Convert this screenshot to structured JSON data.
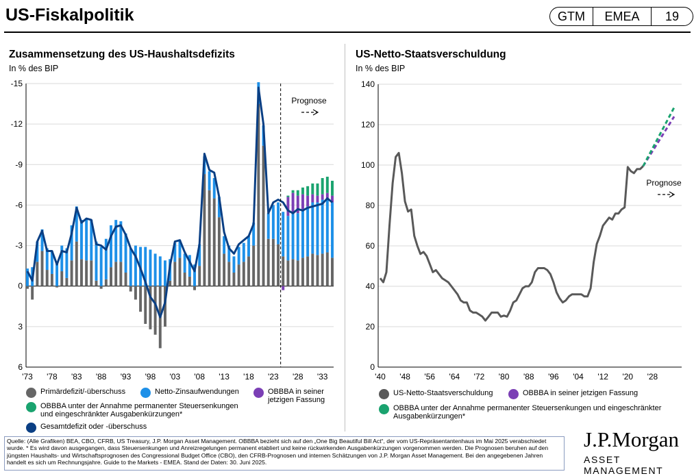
{
  "header": {
    "title": "US-Fiskalpolitik",
    "badge": [
      "GTM",
      "EMEA",
      "19"
    ]
  },
  "colors": {
    "primary": "#666666",
    "interest": "#1e90e8",
    "obbba": "#7b3fb5",
    "obbba_perm": "#1aa36f",
    "total": "#0a3f84",
    "debt": "#595959"
  },
  "chart_data": [
    {
      "type": "bar",
      "title": "Zusammensetzung des US-Haushaltsdefizits",
      "subtitle": "In % des BIP",
      "yticks": [
        "-15",
        "-12",
        "-9",
        "-6",
        "-3",
        "0",
        "3",
        "6"
      ],
      "ylim": [
        -15,
        6
      ],
      "xticks": [
        "'73",
        "'78",
        "'83",
        "'88",
        "'93",
        "'98",
        "'03",
        "'08",
        "'13",
        "'18",
        "'23",
        "'28",
        "'33"
      ],
      "years": [
        1973,
        1974,
        1975,
        1976,
        1977,
        1978,
        1979,
        1980,
        1981,
        1982,
        1983,
        1984,
        1985,
        1986,
        1987,
        1988,
        1989,
        1990,
        1991,
        1992,
        1993,
        1994,
        1995,
        1996,
        1997,
        1998,
        1999,
        2000,
        2001,
        2002,
        2003,
        2004,
        2005,
        2006,
        2007,
        2008,
        2009,
        2010,
        2011,
        2012,
        2013,
        2014,
        2015,
        2016,
        2017,
        2018,
        2019,
        2020,
        2021,
        2022,
        2023,
        2024,
        2025,
        2026,
        2027,
        2028,
        2029,
        2030,
        2031,
        2032,
        2033,
        2034,
        2035
      ],
      "series": [
        {
          "name": "Primärdefizit/-überschuss",
          "values": [
            0.2,
            1,
            -1.8,
            -2.6,
            -1.2,
            -0.9,
            0.1,
            -1.1,
            -0.6,
            -1.9,
            -3.3,
            -2,
            -1.9,
            -1.9,
            -0.4,
            0.2,
            -0.5,
            -1.4,
            -1.8,
            -1.8,
            -1,
            0.4,
            1,
            1.9,
            2.8,
            3.2,
            3.6,
            4.6,
            3,
            -0.4,
            -1.8,
            -2.1,
            -1,
            -0.7,
            0.3,
            -1.5,
            -8.3,
            -7.1,
            -6.5,
            -5.1,
            -2.4,
            -1.8,
            -1,
            -1.6,
            -1.8,
            -2.2,
            -3,
            -13.5,
            -10.4,
            -3.5,
            -3.5,
            -3.1,
            -2.2,
            -1.9,
            -2.0,
            -1.9,
            -2.1,
            -2.2,
            -2.4,
            -2.3,
            -2.4,
            -2.5,
            -2.1
          ]
        },
        {
          "name": "Netto-Zinsaufwendungen",
          "values": [
            1.3,
            1.4,
            1.5,
            1.6,
            1.6,
            1.7,
            1.7,
            1.9,
            2.2,
            2.6,
            2.6,
            2.9,
            3.1,
            3.0,
            2.9,
            2.9,
            3.0,
            3.1,
            3.1,
            3.0,
            2.9,
            2.8,
            3.0,
            2.9,
            2.9,
            2.7,
            2.4,
            2.2,
            1.9,
            1.6,
            1.4,
            1.3,
            1.4,
            1.6,
            1.6,
            1.6,
            1.3,
            1.4,
            1.5,
            1.5,
            1.3,
            1.2,
            1.2,
            1.3,
            1.4,
            1.5,
            1.7,
            1.6,
            1.5,
            1.9,
            2.5,
            3.1,
            3.3,
            3.3,
            3.4,
            3.5,
            3.6,
            3.7,
            3.8,
            3.9,
            4.0,
            4.0,
            4.1
          ]
        },
        {
          "name": "OBBBA in seiner jetzigen Fassung",
          "values": [
            0,
            0,
            0,
            0,
            0,
            0,
            0,
            0,
            0,
            0,
            0,
            0,
            0,
            0,
            0,
            0,
            0,
            0,
            0,
            0,
            0,
            0,
            0,
            0,
            0,
            0,
            0,
            0,
            0,
            0,
            0,
            0,
            0,
            0,
            0,
            0,
            0,
            0,
            0,
            0,
            0,
            0,
            0,
            0,
            0,
            0,
            0,
            0,
            0,
            0,
            0,
            0,
            -0.3,
            1.4,
            1.5,
            1.3,
            1.1,
            0.8,
            0.6,
            0.5,
            0.4,
            0.4,
            0.5
          ]
        },
        {
          "name": "OBBBA unter der Annahme permanenter Steuersenkungen und eingeschränkter Ausgabenkürzungen*",
          "values": [
            0,
            0,
            0,
            0,
            0,
            0,
            0,
            0,
            0,
            0,
            0,
            0,
            0,
            0,
            0,
            0,
            0,
            0,
            0,
            0,
            0,
            0,
            0,
            0,
            0,
            0,
            0,
            0,
            0,
            0,
            0,
            0,
            0,
            0,
            0,
            0,
            0,
            0,
            0,
            0,
            0,
            0,
            0,
            0,
            0,
            0,
            0,
            0,
            0,
            0,
            0,
            0,
            0,
            0.1,
            0.2,
            0.4,
            0.5,
            0.7,
            0.8,
            0.9,
            1.2,
            1.2,
            1.1
          ]
        },
        {
          "name": "Gesamtdefizit oder -überschuss",
          "values": [
            -1.1,
            -0.4,
            -3.3,
            -4.1,
            -2.6,
            -2.6,
            -1.6,
            -2.6,
            -2.5,
            -3.9,
            -5.8,
            -4.7,
            -5,
            -4.9,
            -3.1,
            -3,
            -2.7,
            -3.7,
            -4.4,
            -4.5,
            -3.8,
            -2.8,
            -2.2,
            -1.3,
            -0.3,
            0.8,
            1.3,
            2.3,
            1.2,
            -1.5,
            -3.3,
            -3.4,
            -2.5,
            -1.8,
            -1.1,
            -3.1,
            -9.8,
            -8.6,
            -8.4,
            -6.6,
            -4,
            -2.8,
            -2.4,
            -3.1,
            -3.4,
            -3.7,
            -4.6,
            -14.7,
            -12,
            -5.4,
            -6.2,
            -6.4,
            -6.2,
            -5.6,
            -5.4,
            -5.7,
            -5.6,
            -5.8,
            -5.9,
            -6.0,
            -6.1,
            -6.5,
            -6.2
          ]
        }
      ],
      "forecast_start_year": 2025,
      "annotation": "Prognose"
    },
    {
      "type": "line",
      "title": "US-Netto-Staatsverschuldung",
      "subtitle": "In % des BIP",
      "yticks": [
        "140",
        "120",
        "100",
        "80",
        "60",
        "40",
        "20",
        "0"
      ],
      "ylim": [
        0,
        140
      ],
      "xticks": [
        "'40",
        "'48",
        "'56",
        "'64",
        "'72",
        "'80",
        "'88",
        "'96",
        "'04",
        "'12",
        "'20",
        "'28"
      ],
      "series": [
        {
          "name": "US-Netto-Staatsverschuldung",
          "x": [
            1940,
            1941,
            1942,
            1943,
            1944,
            1945,
            1946,
            1947,
            1948,
            1949,
            1950,
            1951,
            1952,
            1953,
            1954,
            1955,
            1956,
            1957,
            1958,
            1959,
            1960,
            1961,
            1962,
            1963,
            1964,
            1965,
            1966,
            1967,
            1968,
            1969,
            1970,
            1971,
            1972,
            1973,
            1974,
            1975,
            1976,
            1977,
            1978,
            1979,
            1980,
            1981,
            1982,
            1983,
            1984,
            1985,
            1986,
            1987,
            1988,
            1989,
            1990,
            1991,
            1992,
            1993,
            1994,
            1995,
            1996,
            1997,
            1998,
            1999,
            2000,
            2001,
            2002,
            2003,
            2004,
            2005,
            2006,
            2007,
            2008,
            2009,
            2010,
            2011,
            2012,
            2013,
            2014,
            2015,
            2016,
            2017,
            2018,
            2019,
            2020,
            2021,
            2022,
            2023,
            2024,
            2025
          ],
          "values": [
            44,
            42,
            47,
            70,
            91,
            104,
            106,
            96,
            82,
            77,
            78,
            65,
            60,
            56,
            57,
            55,
            51,
            47,
            48,
            46,
            44,
            43,
            42,
            40,
            38,
            36,
            33,
            32,
            32,
            28,
            27,
            27,
            26,
            25,
            23,
            25,
            27,
            27,
            27,
            25,
            25.5,
            25,
            28,
            32,
            33,
            36,
            39,
            40,
            40,
            42,
            47,
            49,
            49,
            49,
            48,
            46,
            42,
            37,
            34,
            32,
            33,
            35,
            36,
            36,
            36,
            36,
            35,
            35,
            39,
            52,
            61,
            65,
            70,
            72,
            74,
            73,
            76,
            76,
            78,
            79,
            99,
            97,
            96,
            98,
            98,
            99.5
          ]
        },
        {
          "name": "OBBBA in seiner jetzigen Fassung",
          "x": [
            2025,
            2035
          ],
          "values": [
            99.5,
            124
          ]
        },
        {
          "name": "OBBBA unter der Annahme permanenter Steuersenkungen und eingeschränkter Ausgabenkürzungen*",
          "x": [
            2025,
            2035
          ],
          "values": [
            99.5,
            128.5
          ]
        }
      ],
      "annotation": "Prognose"
    }
  ],
  "legend_left": [
    "Primärdefizit/-überschuss",
    "Netto-Zinsaufwendungen",
    "OBBBA in seiner jetzigen Fassung",
    "OBBBA unter der Annahme permanenter Steuersenkungen und eingeschränkter Ausgabenkürzungen*",
    "Gesamtdefizit oder -überschuss"
  ],
  "legend_right": [
    "US-Netto-Staatsverschuldung",
    "OBBBA in seiner jetzigen Fassung",
    "OBBBA unter der Annahme permanenter Steuersenkungen und eingeschränkter Ausgabenkürzungen*"
  ],
  "footer": {
    "source": "Quelle: (Alle Grafiken) BEA, CBO, CFRB, US Treasury, J.P. Morgan Asset Management. OBBBA bezieht sich auf den „One Big Beautiful Bill Act“, der vom US-Repräsentantenhaus im Mai 2025 verabschiedet wurde. * Es wird davon ausgegangen, dass Steuersenkungen und Anreizregelungen permanent etabliert und keine rückwirkenden Ausgabenkürzungen vorgenommen werden. Die Prognosen beruhen auf den jüngsten Haushalts- und Wirtschaftsprognosen des Congressional Budget Office (CBO), den CFRB-Prognosen und internen Schätzungen von J.P. Morgan Asset Management. Bei den angegebenen Jahren handelt es sich um Rechnungsjahre. Guide to the Markets - EMEA. Stand der Daten: 30. Juni 2025.",
    "logo_main": "J.P.Morgan",
    "logo_sub": "ASSET MANAGEMENT"
  }
}
